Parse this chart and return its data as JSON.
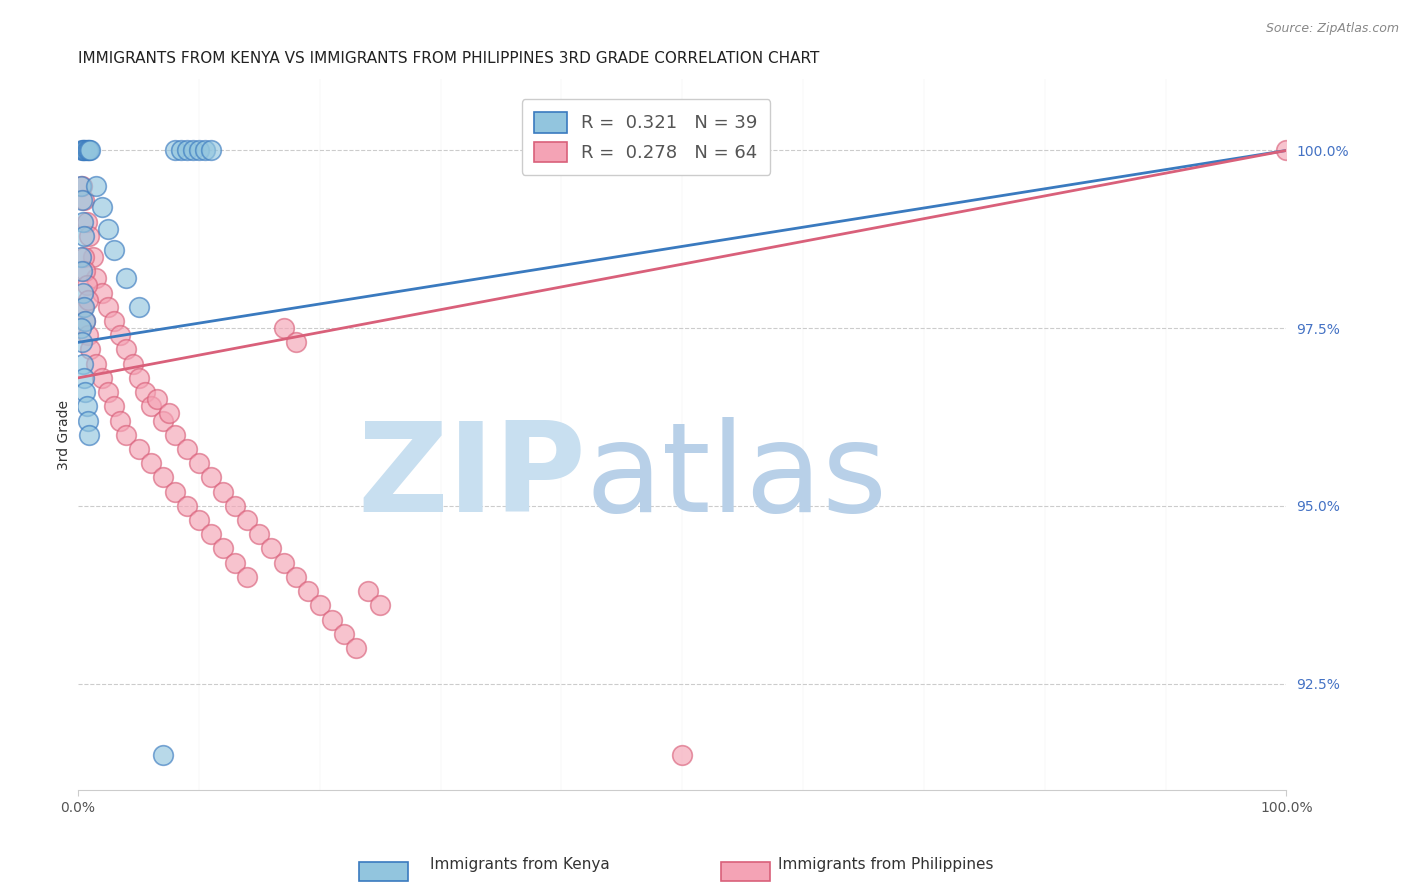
{
  "title": "IMMIGRANTS FROM KENYA VS IMMIGRANTS FROM PHILIPPINES 3RD GRADE CORRELATION CHART",
  "source": "Source: ZipAtlas.com",
  "ylabel": "3rd Grade",
  "ylabel_ticks": [
    92.5,
    95.0,
    97.5,
    100.0
  ],
  "ylabel_tick_labels": [
    "92.5%",
    "95.0%",
    "97.5%",
    "100.0%"
  ],
  "xlim": [
    0.0,
    100.0
  ],
  "ylim": [
    91.0,
    101.0
  ],
  "kenya_color": "#92c5de",
  "kenya_color_line": "#3a7abf",
  "phil_color": "#f4a3b5",
  "phil_color_line": "#d9607a",
  "kenya_scatter_x": [
    0.3,
    0.4,
    0.5,
    0.6,
    0.7,
    0.8,
    0.9,
    1.0,
    0.2,
    0.3,
    0.4,
    0.5,
    0.2,
    0.3,
    0.4,
    0.5,
    0.6,
    1.5,
    2.0,
    2.5,
    3.0,
    8.0,
    8.5,
    9.0,
    9.5,
    10.0,
    10.5,
    11.0,
    0.2,
    0.3,
    0.4,
    0.5,
    0.6,
    0.7,
    0.8,
    0.9,
    4.0,
    5.0,
    7.0
  ],
  "kenya_scatter_y": [
    100.0,
    100.0,
    100.0,
    100.0,
    100.0,
    100.0,
    100.0,
    100.0,
    99.5,
    99.3,
    99.0,
    98.8,
    98.5,
    98.3,
    98.0,
    97.8,
    97.6,
    99.5,
    99.2,
    98.9,
    98.6,
    100.0,
    100.0,
    100.0,
    100.0,
    100.0,
    100.0,
    100.0,
    97.5,
    97.3,
    97.0,
    96.8,
    96.6,
    96.4,
    96.2,
    96.0,
    98.2,
    97.8,
    91.5
  ],
  "phil_scatter_x": [
    0.3,
    0.5,
    0.7,
    0.9,
    1.2,
    1.5,
    2.0,
    2.5,
    3.0,
    3.5,
    4.0,
    4.5,
    5.0,
    5.5,
    6.0,
    7.0,
    8.0,
    9.0,
    10.0,
    11.0,
    12.0,
    13.0,
    14.0,
    15.0,
    16.0,
    17.0,
    18.0,
    19.0,
    20.0,
    21.0,
    22.0,
    23.0,
    0.4,
    0.6,
    0.8,
    1.0,
    1.5,
    2.0,
    2.5,
    3.0,
    3.5,
    4.0,
    5.0,
    6.0,
    7.0,
    8.0,
    9.0,
    10.0,
    11.0,
    12.0,
    13.0,
    14.0,
    50.0,
    0.5,
    0.6,
    0.7,
    0.8,
    100.0,
    6.5,
    7.5,
    24.0,
    25.0,
    17.0,
    18.0
  ],
  "phil_scatter_y": [
    99.5,
    99.3,
    99.0,
    98.8,
    98.5,
    98.2,
    98.0,
    97.8,
    97.6,
    97.4,
    97.2,
    97.0,
    96.8,
    96.6,
    96.4,
    96.2,
    96.0,
    95.8,
    95.6,
    95.4,
    95.2,
    95.0,
    94.8,
    94.6,
    94.4,
    94.2,
    94.0,
    93.8,
    93.6,
    93.4,
    93.2,
    93.0,
    97.8,
    97.6,
    97.4,
    97.2,
    97.0,
    96.8,
    96.6,
    96.4,
    96.2,
    96.0,
    95.8,
    95.6,
    95.4,
    95.2,
    95.0,
    94.8,
    94.6,
    94.4,
    94.2,
    94.0,
    91.5,
    98.5,
    98.3,
    98.1,
    97.9,
    100.0,
    96.5,
    96.3,
    93.8,
    93.6,
    97.5,
    97.3
  ],
  "kenya_line_x": [
    0.0,
    100.0
  ],
  "kenya_line_y": [
    97.3,
    100.0
  ],
  "phil_line_x": [
    0.0,
    100.0
  ],
  "phil_line_y": [
    96.8,
    100.0
  ],
  "watermark_zip": "ZIP",
  "watermark_atlas": "atlas",
  "watermark_color_zip": "#c8dff0",
  "watermark_color_atlas": "#b8d0e8",
  "legend_kenya_R": "0.321",
  "legend_kenya_N": "39",
  "legend_phil_R": "0.278",
  "legend_phil_N": "64",
  "title_fontsize": 11,
  "axis_label_fontsize": 10,
  "tick_fontsize": 10,
  "legend_fontsize": 13,
  "background_color": "#ffffff",
  "grid_color": "#cccccc",
  "right_label_color": "#4472c4",
  "scatter_size": 200,
  "scatter_alpha": 0.65
}
